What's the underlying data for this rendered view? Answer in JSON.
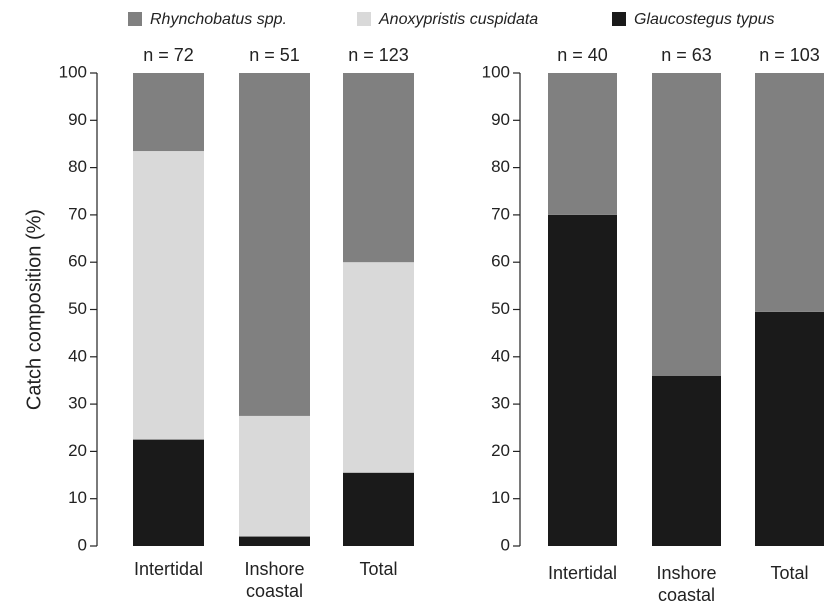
{
  "chart_data": [
    {
      "type": "stacked_bar",
      "y_label": "Catch composition (%)",
      "categories": [
        "Intertidal",
        "Inshore coastal",
        "Total"
      ],
      "bar_labels": [
        "n = 72",
        "n = 51",
        "n = 123"
      ],
      "ylim": [
        0,
        100
      ],
      "yticks": [
        0,
        10,
        20,
        30,
        40,
        50,
        60,
        70,
        80,
        90,
        100
      ],
      "series": [
        {
          "name": "Rhynchobatus spp.",
          "color": "#808080",
          "values": [
            16.5,
            72.5,
            40
          ]
        },
        {
          "name": "Anoxypristis cuspidata",
          "color": "#d9d9d9",
          "values": [
            61,
            25.5,
            44.5
          ]
        },
        {
          "name": "Glaucostegus typus",
          "color": "#1a1a1a",
          "values": [
            22.5,
            2,
            15.5
          ]
        }
      ]
    },
    {
      "type": "stacked_bar",
      "categories": [
        "Intertidal",
        "Inshore coastal",
        "Total"
      ],
      "bar_labels": [
        "n = 40",
        "n = 63",
        "n = 103"
      ],
      "ylim": [
        0,
        100
      ],
      "yticks": [
        0,
        10,
        20,
        30,
        40,
        50,
        60,
        70,
        80,
        90,
        100
      ],
      "series": [
        {
          "color": "#808080",
          "values": [
            30,
            64,
            50.5
          ]
        },
        {
          "color": "#1a1a1a",
          "values": [
            70,
            36,
            49.5
          ]
        }
      ]
    }
  ]
}
